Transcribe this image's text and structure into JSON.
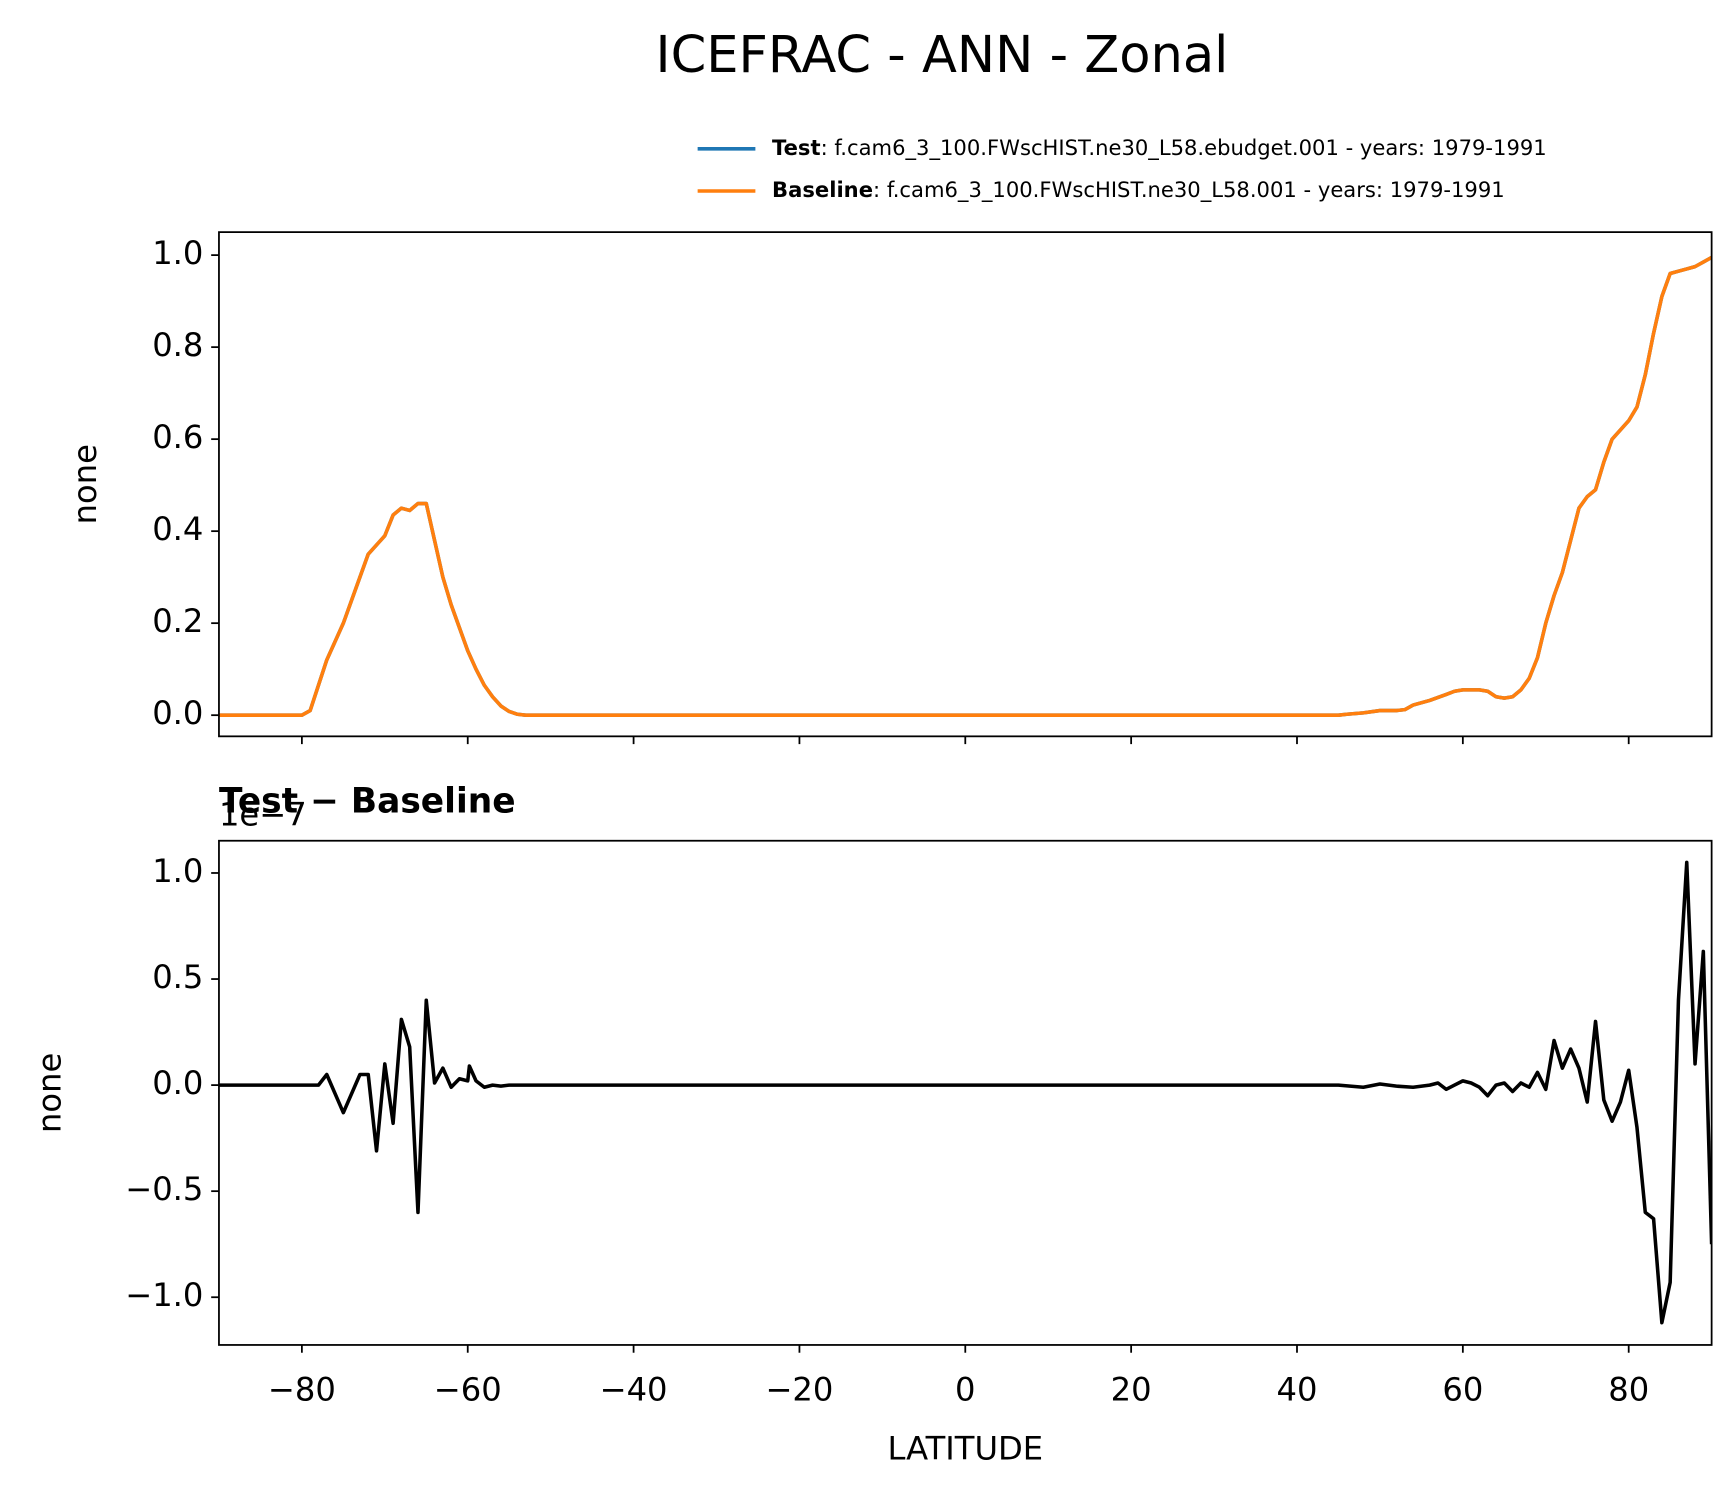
{
  "title": "ICEFRAC - ANN - Zonal",
  "chart_data": [
    {
      "type": "line",
      "ylabel": "none",
      "x": [
        -90,
        -85,
        -80,
        -79,
        -77,
        -75,
        -73,
        -72,
        -70,
        -69,
        -68,
        -67,
        -66,
        -65,
        -64,
        -63,
        -62,
        -61,
        -60,
        -59,
        -58,
        -57,
        -56,
        -55,
        -54,
        -53,
        -40,
        -20,
        0,
        20,
        40,
        45,
        46,
        48,
        50,
        52,
        53,
        54,
        56,
        58,
        59,
        60,
        62,
        63,
        64,
        65,
        66,
        67,
        68,
        69,
        70,
        71,
        72,
        73,
        74,
        75,
        76,
        77,
        78,
        79,
        80,
        81,
        82,
        83,
        84,
        85,
        86,
        87,
        88,
        89,
        90
      ],
      "series": [
        {
          "name": "Test",
          "description": ": f.cam6_3_100.FWscHIST.ne30_L58.ebudget.001 - years: 1979-1991",
          "color": "#1f77b4",
          "values": [
            0,
            0,
            0,
            0.01,
            0.12,
            0.2,
            0.3,
            0.35,
            0.39,
            0.435,
            0.45,
            0.445,
            0.46,
            0.46,
            0.38,
            0.3,
            0.24,
            0.19,
            0.14,
            0.1,
            0.065,
            0.04,
            0.02,
            0.008,
            0.002,
            0,
            0,
            0,
            0,
            0,
            0,
            0,
            0.002,
            0.005,
            0.01,
            0.01,
            0.012,
            0.022,
            0.032,
            0.045,
            0.052,
            0.055,
            0.055,
            0.052,
            0.04,
            0.037,
            0.04,
            0.055,
            0.08,
            0.125,
            0.2,
            0.26,
            0.31,
            0.38,
            0.45,
            0.475,
            0.49,
            0.55,
            0.6,
            0.62,
            0.64,
            0.67,
            0.74,
            0.83,
            0.91,
            0.96,
            0.965,
            0.97,
            0.975,
            0.985,
            0.995
          ]
        },
        {
          "name": "Baseline",
          "description": ": f.cam6_3_100.FWscHIST.ne30_L58.001 - years: 1979-1991",
          "color": "#ff7f0e",
          "values": [
            0,
            0,
            0,
            0.01,
            0.12,
            0.2,
            0.3,
            0.35,
            0.39,
            0.435,
            0.45,
            0.445,
            0.46,
            0.46,
            0.38,
            0.3,
            0.24,
            0.19,
            0.14,
            0.1,
            0.065,
            0.04,
            0.02,
            0.008,
            0.002,
            0,
            0,
            0,
            0,
            0,
            0,
            0,
            0.002,
            0.005,
            0.01,
            0.01,
            0.012,
            0.022,
            0.032,
            0.045,
            0.052,
            0.055,
            0.055,
            0.052,
            0.04,
            0.037,
            0.04,
            0.055,
            0.08,
            0.125,
            0.2,
            0.26,
            0.31,
            0.38,
            0.45,
            0.475,
            0.49,
            0.55,
            0.6,
            0.62,
            0.64,
            0.67,
            0.74,
            0.83,
            0.91,
            0.96,
            0.965,
            0.97,
            0.975,
            0.985,
            0.995
          ]
        }
      ],
      "xlim": [
        -90,
        90
      ],
      "xticks": [
        -80,
        -60,
        -40,
        -20,
        0,
        20,
        40,
        60,
        80
      ],
      "ylim": [
        -0.046,
        1.05
      ],
      "yticks": [
        {
          "value": 0,
          "label": "0.0"
        },
        0.2,
        0.4,
        0.6,
        0.8,
        {
          "value": 1,
          "label": "1.0"
        }
      ],
      "legend": "upper right"
    },
    {
      "type": "line",
      "title": "Test − Baseline",
      "offset_text": "1e−7",
      "ylabel": "none",
      "xlabel": "LATITUDE",
      "x": [
        -90,
        -80,
        -78,
        -77,
        -75,
        -73,
        -72,
        -71,
        -70,
        -69,
        -68,
        -67,
        -66,
        -65,
        -64,
        -63,
        -62,
        -61,
        -60,
        -59.8,
        -59,
        -58,
        -57,
        -56,
        -55,
        -40,
        0,
        40,
        45,
        48,
        50,
        52,
        54,
        56,
        57,
        58,
        59,
        60,
        61,
        62,
        63,
        64,
        65,
        66,
        67,
        68,
        69,
        70,
        71,
        72,
        73,
        74,
        75,
        76,
        77,
        78,
        79,
        80,
        81,
        82,
        83,
        84,
        85,
        86,
        87,
        88,
        89,
        90
      ],
      "series": [
        {
          "color": "#000000",
          "values": [
            0,
            0,
            0,
            0.05,
            -0.13,
            0.05,
            0.05,
            -0.31,
            0.1,
            -0.18,
            0.31,
            0.18,
            -0.6,
            0.4,
            0.01,
            0.08,
            -0.01,
            0.03,
            0.02,
            0.09,
            0.02,
            -0.01,
            0,
            -0.005,
            0,
            0,
            0,
            0,
            0,
            -0.01,
            0.005,
            -0.005,
            -0.01,
            0,
            0.01,
            -0.02,
            0,
            0.02,
            0.01,
            -0.01,
            -0.05,
            0,
            0.01,
            -0.03,
            0.01,
            -0.01,
            0.06,
            -0.02,
            0.21,
            0.08,
            0.17,
            0.08,
            -0.08,
            0.3,
            -0.07,
            -0.17,
            -0.08,
            0.07,
            -0.2,
            -0.6,
            -0.63,
            -1.12,
            -0.93,
            0.4,
            1.05,
            0.1,
            0.63,
            -0.75
          ]
        }
      ],
      "xlim": [
        -90,
        90
      ],
      "xticks": [
        {
          "value": -80,
          "label": "−80"
        },
        {
          "value": -60,
          "label": "−60"
        },
        {
          "value": -40,
          "label": "−40"
        },
        {
          "value": -20,
          "label": "−20"
        },
        0,
        20,
        40,
        60,
        80
      ],
      "ylim": [
        -1.225,
        1.152
      ],
      "yticks": [
        {
          "value": -1,
          "label": "−1.0"
        },
        {
          "value": -0.5,
          "label": "−0.5"
        },
        {
          "value": 0,
          "label": "0.0"
        },
        0.5,
        {
          "value": 1,
          "label": "1.0"
        }
      ]
    }
  ]
}
